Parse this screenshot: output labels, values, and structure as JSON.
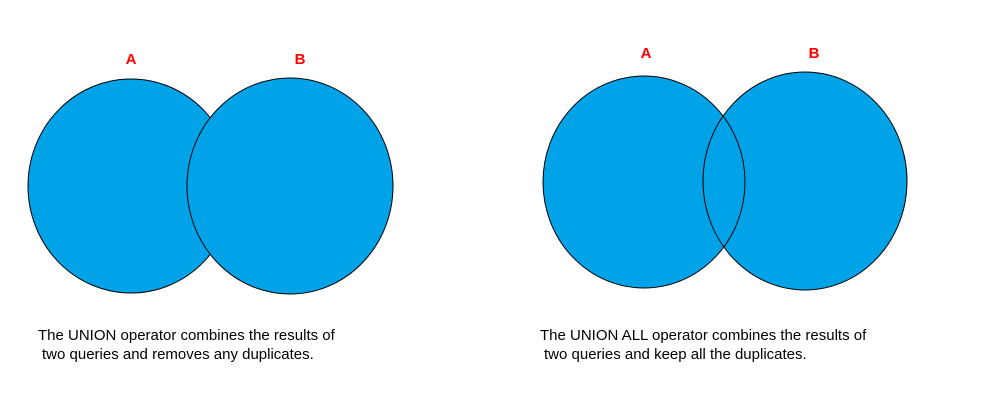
{
  "colors": {
    "fill": "#00a2e8",
    "stroke": "#000000",
    "label": "#ff0000",
    "text": "#000000"
  },
  "union": {
    "label_a": "A",
    "label_b": "B",
    "caption_line1": "The UNION operator combines the results of",
    "caption_line2": "two queries and removes any duplicates."
  },
  "union_all": {
    "label_a": "A",
    "label_b": "B",
    "caption_line1": "The UNION ALL operator combines the results of",
    "caption_line2": "two queries and keep all the duplicates."
  }
}
